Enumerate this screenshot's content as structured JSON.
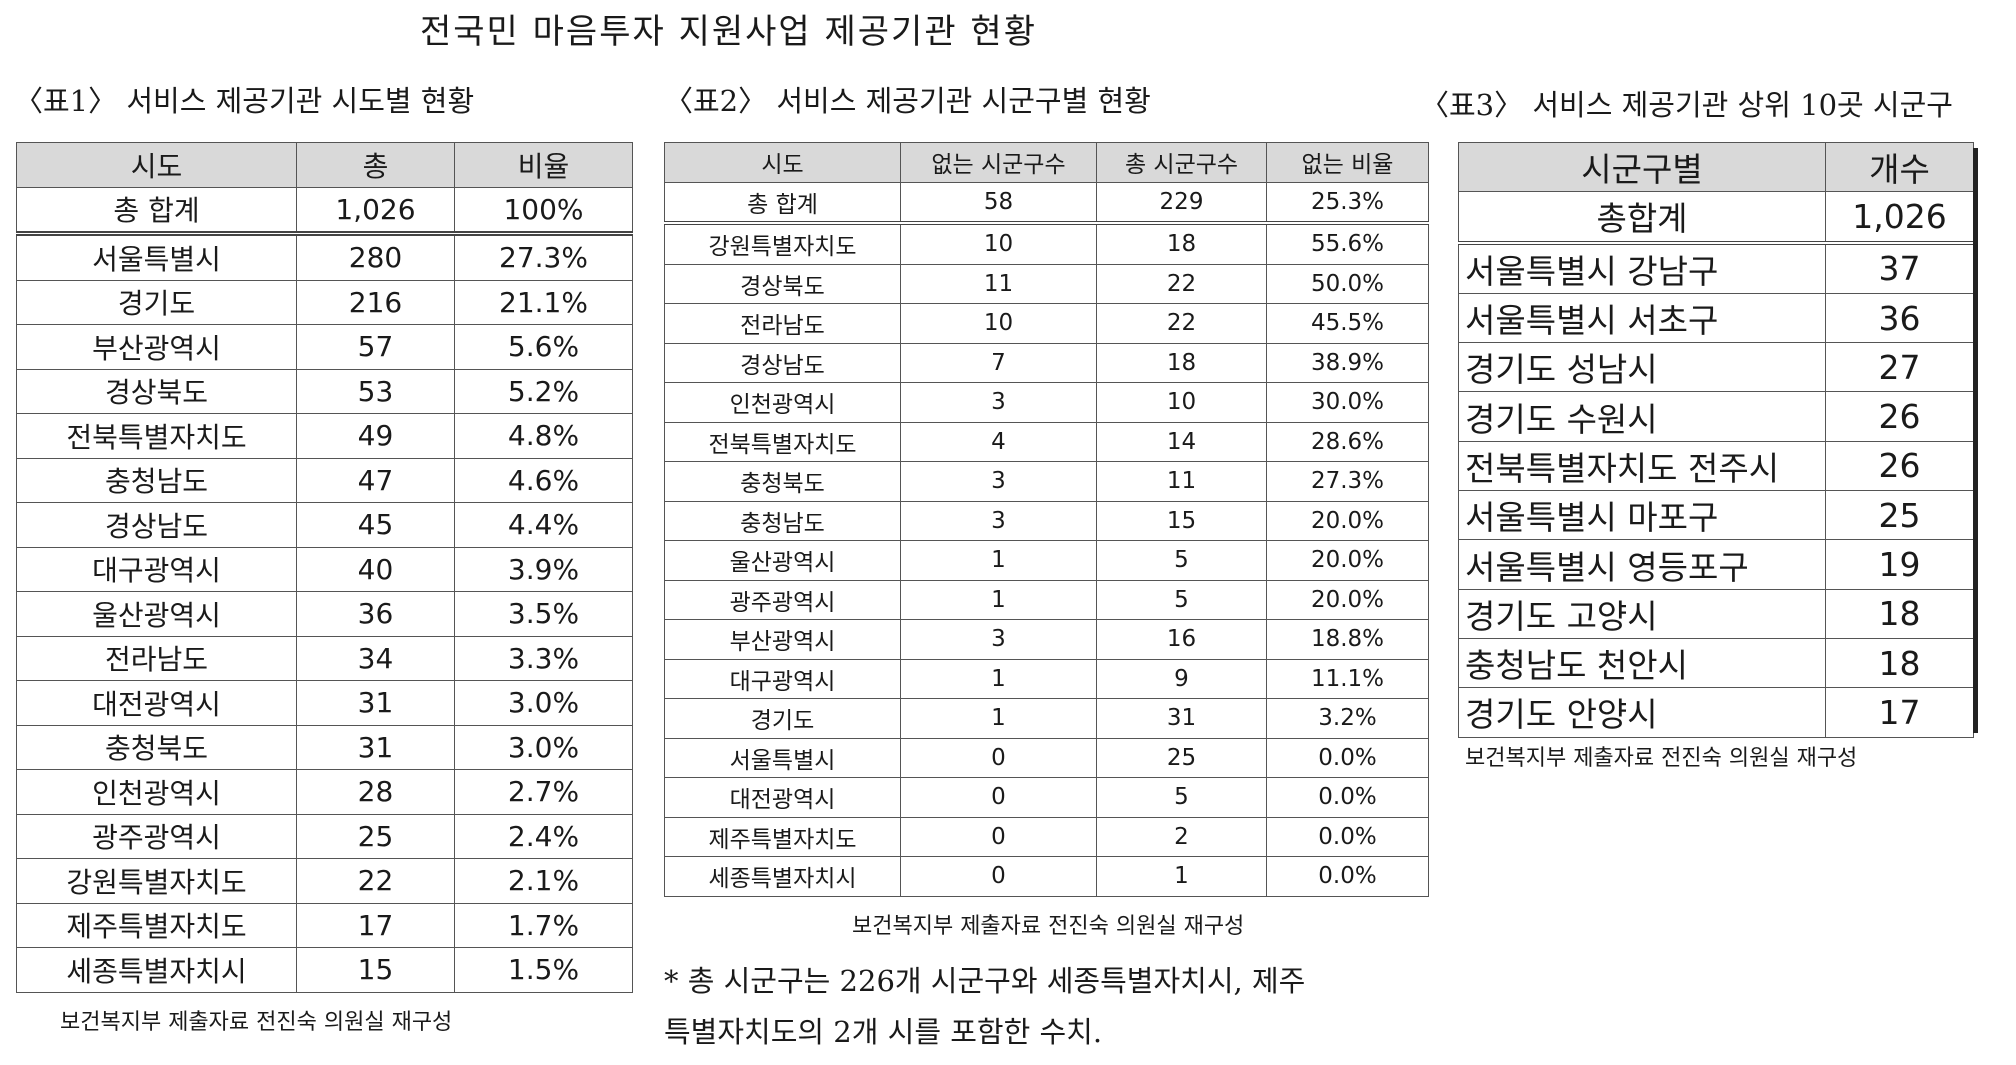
{
  "title": "전국민 마음투자 지원사업 제공기관 현황",
  "table1": {
    "caption": "〈표1〉 서비스 제공기관 시도별 현황",
    "headers": [
      "시도",
      "총",
      "비율"
    ],
    "total": [
      "총 합계",
      "1,026",
      "100%"
    ],
    "rows": [
      [
        "서울특별시",
        "280",
        "27.3%"
      ],
      [
        "경기도",
        "216",
        "21.1%"
      ],
      [
        "부산광역시",
        "57",
        "5.6%"
      ],
      [
        "경상북도",
        "53",
        "5.2%"
      ],
      [
        "전북특별자치도",
        "49",
        "4.8%"
      ],
      [
        "충청남도",
        "47",
        "4.6%"
      ],
      [
        "경상남도",
        "45",
        "4.4%"
      ],
      [
        "대구광역시",
        "40",
        "3.9%"
      ],
      [
        "울산광역시",
        "36",
        "3.5%"
      ],
      [
        "전라남도",
        "34",
        "3.3%"
      ],
      [
        "대전광역시",
        "31",
        "3.0%"
      ],
      [
        "충청북도",
        "31",
        "3.0%"
      ],
      [
        "인천광역시",
        "28",
        "2.7%"
      ],
      [
        "광주광역시",
        "25",
        "2.4%"
      ],
      [
        "강원특별자치도",
        "22",
        "2.1%"
      ],
      [
        "제주특별자치도",
        "17",
        "1.7%"
      ],
      [
        "세종특별자치시",
        "15",
        "1.5%"
      ]
    ],
    "source": "보건복지부 제출자료 전진숙 의원실 재구성"
  },
  "table2": {
    "caption": "〈표2〉 서비스 제공기관 시군구별 현황",
    "headers": [
      "시도",
      "없는 시군구수",
      "총 시군구수",
      "없는 비율"
    ],
    "total": [
      "총 합계",
      "58",
      "229",
      "25.3%"
    ],
    "rows": [
      [
        "강원특별자치도",
        "10",
        "18",
        "55.6%"
      ],
      [
        "경상북도",
        "11",
        "22",
        "50.0%"
      ],
      [
        "전라남도",
        "10",
        "22",
        "45.5%"
      ],
      [
        "경상남도",
        "7",
        "18",
        "38.9%"
      ],
      [
        "인천광역시",
        "3",
        "10",
        "30.0%"
      ],
      [
        "전북특별자치도",
        "4",
        "14",
        "28.6%"
      ],
      [
        "충청북도",
        "3",
        "11",
        "27.3%"
      ],
      [
        "충청남도",
        "3",
        "15",
        "20.0%"
      ],
      [
        "울산광역시",
        "1",
        "5",
        "20.0%"
      ],
      [
        "광주광역시",
        "1",
        "5",
        "20.0%"
      ],
      [
        "부산광역시",
        "3",
        "16",
        "18.8%"
      ],
      [
        "대구광역시",
        "1",
        "9",
        "11.1%"
      ],
      [
        "경기도",
        "1",
        "31",
        "3.2%"
      ],
      [
        "서울특별시",
        "0",
        "25",
        "0.0%"
      ],
      [
        "대전광역시",
        "0",
        "5",
        "0.0%"
      ],
      [
        "제주특별자치도",
        "0",
        "2",
        "0.0%"
      ],
      [
        "세종특별자치시",
        "0",
        "1",
        "0.0%"
      ]
    ],
    "source": "보건복지부 제출자료 전진숙 의원실 재구성",
    "note_line1": "* 총 시군구는 226개 시군구와 세종특별자치시, 제주",
    "note_line2": "특별자치도의 2개 시를 포함한 수치."
  },
  "table3": {
    "caption": "〈표3〉 서비스 제공기관 상위 10곳 시군구",
    "headers": [
      "시군구별",
      "개수"
    ],
    "total": [
      "총합계",
      "1,026"
    ],
    "rows": [
      [
        "서울특별시 강남구",
        "37"
      ],
      [
        "서울특별시 서초구",
        "36"
      ],
      [
        "경기도 성남시",
        "27"
      ],
      [
        "경기도 수원시",
        "26"
      ],
      [
        "전북특별자치도 전주시",
        "26"
      ],
      [
        "서울특별시 마포구",
        "25"
      ],
      [
        "서울특별시 영등포구",
        "19"
      ],
      [
        "경기도 고양시",
        "18"
      ],
      [
        "충청남도 천안시",
        "18"
      ],
      [
        "경기도 안양시",
        "17"
      ]
    ],
    "source": "보건복지부 제출자료 전진숙 의원실 재구성"
  }
}
